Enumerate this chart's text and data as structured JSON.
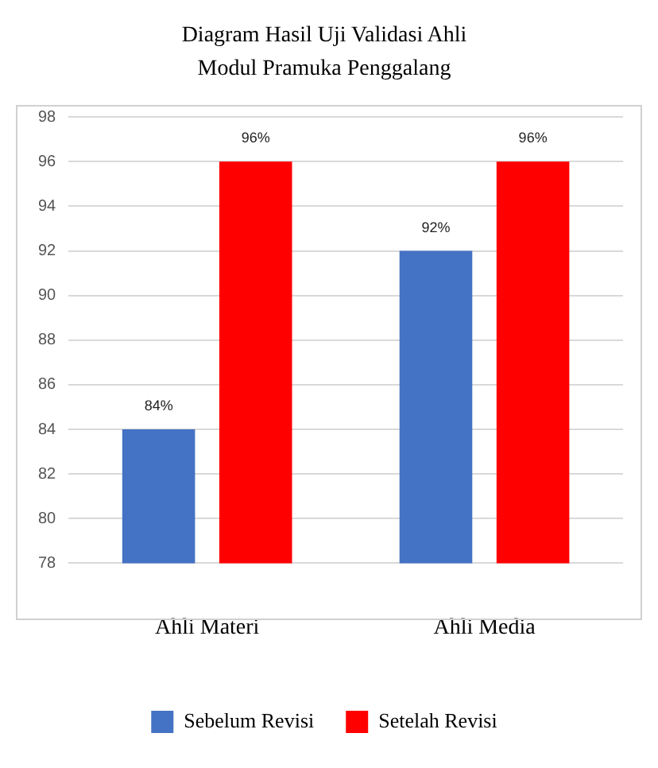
{
  "chart_data": {
    "type": "bar",
    "title": "Diagram Hasil Uji Validasi Ahli",
    "subtitle": "Modul Pramuka Penggalang",
    "categories": [
      "Ahli Materi",
      "Ahli Media"
    ],
    "series": [
      {
        "name": "Sebelum Revisi",
        "color": "#4472c4",
        "values": [
          84,
          92
        ],
        "value_labels": [
          "84%",
          "92%"
        ]
      },
      {
        "name": "Setelah Revisi",
        "color": "#ff0000",
        "values": [
          96,
          96
        ],
        "value_labels": [
          "96%",
          "96%"
        ]
      }
    ],
    "ylim": [
      78,
      98
    ],
    "yticks": [
      78,
      80,
      82,
      84,
      86,
      88,
      90,
      92,
      94,
      96,
      98
    ],
    "grid": "y",
    "legend": "bottom"
  }
}
